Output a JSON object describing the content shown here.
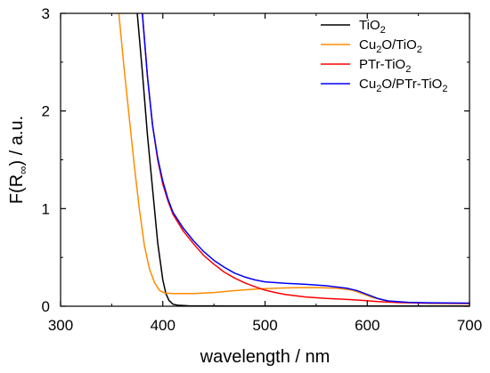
{
  "chart_data": {
    "type": "line",
    "title": "",
    "xlabel": "wavelength / nm",
    "ylabel": "F(R∞) / a.u.",
    "ylabel_parts": {
      "main": "F(R",
      "sub": "∞",
      "tail": ") / a.u."
    },
    "xlim": [
      300,
      700
    ],
    "ylim": [
      0,
      3
    ],
    "x_ticks": [
      300,
      400,
      500,
      600,
      700
    ],
    "y_ticks": [
      0,
      1,
      2,
      3
    ],
    "grid": false,
    "legend_position": "top-right",
    "series": [
      {
        "name": "TiO2",
        "label_parts": [
          {
            "t": "TiO"
          },
          {
            "t": "2",
            "sub": true
          }
        ],
        "color": "#000000",
        "points": [
          [
            375,
            3.0
          ],
          [
            380,
            2.4
          ],
          [
            385,
            1.75
          ],
          [
            390,
            1.2
          ],
          [
            395,
            0.65
          ],
          [
            400,
            0.27
          ],
          [
            403,
            0.13
          ],
          [
            406,
            0.06
          ],
          [
            410,
            0.02
          ],
          [
            415,
            0.01
          ],
          [
            425,
            0.005
          ],
          [
            450,
            0.003
          ],
          [
            500,
            0.002
          ],
          [
            600,
            0.002
          ],
          [
            700,
            0.002
          ]
        ]
      },
      {
        "name": "Cu2O/TiO2",
        "label_parts": [
          {
            "t": "Cu"
          },
          {
            "t": "2",
            "sub": true
          },
          {
            "t": "O/TiO"
          },
          {
            "t": "2",
            "sub": true
          }
        ],
        "color": "#ff8c00",
        "points": [
          [
            357,
            3.0
          ],
          [
            362,
            2.45
          ],
          [
            367,
            1.95
          ],
          [
            372,
            1.45
          ],
          [
            377,
            1.0
          ],
          [
            382,
            0.62
          ],
          [
            387,
            0.38
          ],
          [
            392,
            0.24
          ],
          [
            397,
            0.16
          ],
          [
            402,
            0.135
          ],
          [
            410,
            0.13
          ],
          [
            430,
            0.13
          ],
          [
            450,
            0.14
          ],
          [
            470,
            0.16
          ],
          [
            490,
            0.175
          ],
          [
            510,
            0.185
          ],
          [
            530,
            0.19
          ],
          [
            550,
            0.192
          ],
          [
            570,
            0.185
          ],
          [
            585,
            0.165
          ],
          [
            595,
            0.13
          ],
          [
            605,
            0.09
          ],
          [
            615,
            0.065
          ],
          [
            625,
            0.045
          ],
          [
            640,
            0.035
          ],
          [
            660,
            0.03
          ],
          [
            700,
            0.025
          ]
        ]
      },
      {
        "name": "PTr-TiO2",
        "label_parts": [
          {
            "t": "PTr-TiO"
          },
          {
            "t": "2",
            "sub": true
          }
        ],
        "color": "#ff0000",
        "points": [
          [
            380,
            3.0
          ],
          [
            385,
            2.35
          ],
          [
            390,
            1.85
          ],
          [
            395,
            1.5
          ],
          [
            400,
            1.25
          ],
          [
            405,
            1.08
          ],
          [
            410,
            0.94
          ],
          [
            420,
            0.77
          ],
          [
            430,
            0.64
          ],
          [
            440,
            0.52
          ],
          [
            450,
            0.43
          ],
          [
            460,
            0.35
          ],
          [
            470,
            0.29
          ],
          [
            480,
            0.24
          ],
          [
            490,
            0.2
          ],
          [
            500,
            0.165
          ],
          [
            510,
            0.14
          ],
          [
            520,
            0.12
          ],
          [
            540,
            0.095
          ],
          [
            560,
            0.08
          ],
          [
            580,
            0.07
          ],
          [
            595,
            0.06
          ],
          [
            610,
            0.048
          ],
          [
            630,
            0.038
          ],
          [
            660,
            0.032
          ],
          [
            700,
            0.03
          ]
        ]
      },
      {
        "name": "Cu2O/PTr-TiO2",
        "label_parts": [
          {
            "t": "Cu"
          },
          {
            "t": "2",
            "sub": true
          },
          {
            "t": "O/PTr-TiO"
          },
          {
            "t": "2",
            "sub": true
          }
        ],
        "color": "#0000ff",
        "points": [
          [
            380,
            3.0
          ],
          [
            385,
            2.35
          ],
          [
            390,
            1.85
          ],
          [
            395,
            1.52
          ],
          [
            400,
            1.28
          ],
          [
            405,
            1.1
          ],
          [
            410,
            0.96
          ],
          [
            420,
            0.8
          ],
          [
            430,
            0.67
          ],
          [
            440,
            0.56
          ],
          [
            450,
            0.47
          ],
          [
            460,
            0.4
          ],
          [
            470,
            0.34
          ],
          [
            480,
            0.3
          ],
          [
            490,
            0.27
          ],
          [
            500,
            0.25
          ],
          [
            520,
            0.235
          ],
          [
            540,
            0.225
          ],
          [
            560,
            0.21
          ],
          [
            580,
            0.185
          ],
          [
            590,
            0.16
          ],
          [
            600,
            0.12
          ],
          [
            610,
            0.08
          ],
          [
            620,
            0.055
          ],
          [
            640,
            0.04
          ],
          [
            660,
            0.035
          ],
          [
            700,
            0.032
          ]
        ]
      }
    ]
  }
}
